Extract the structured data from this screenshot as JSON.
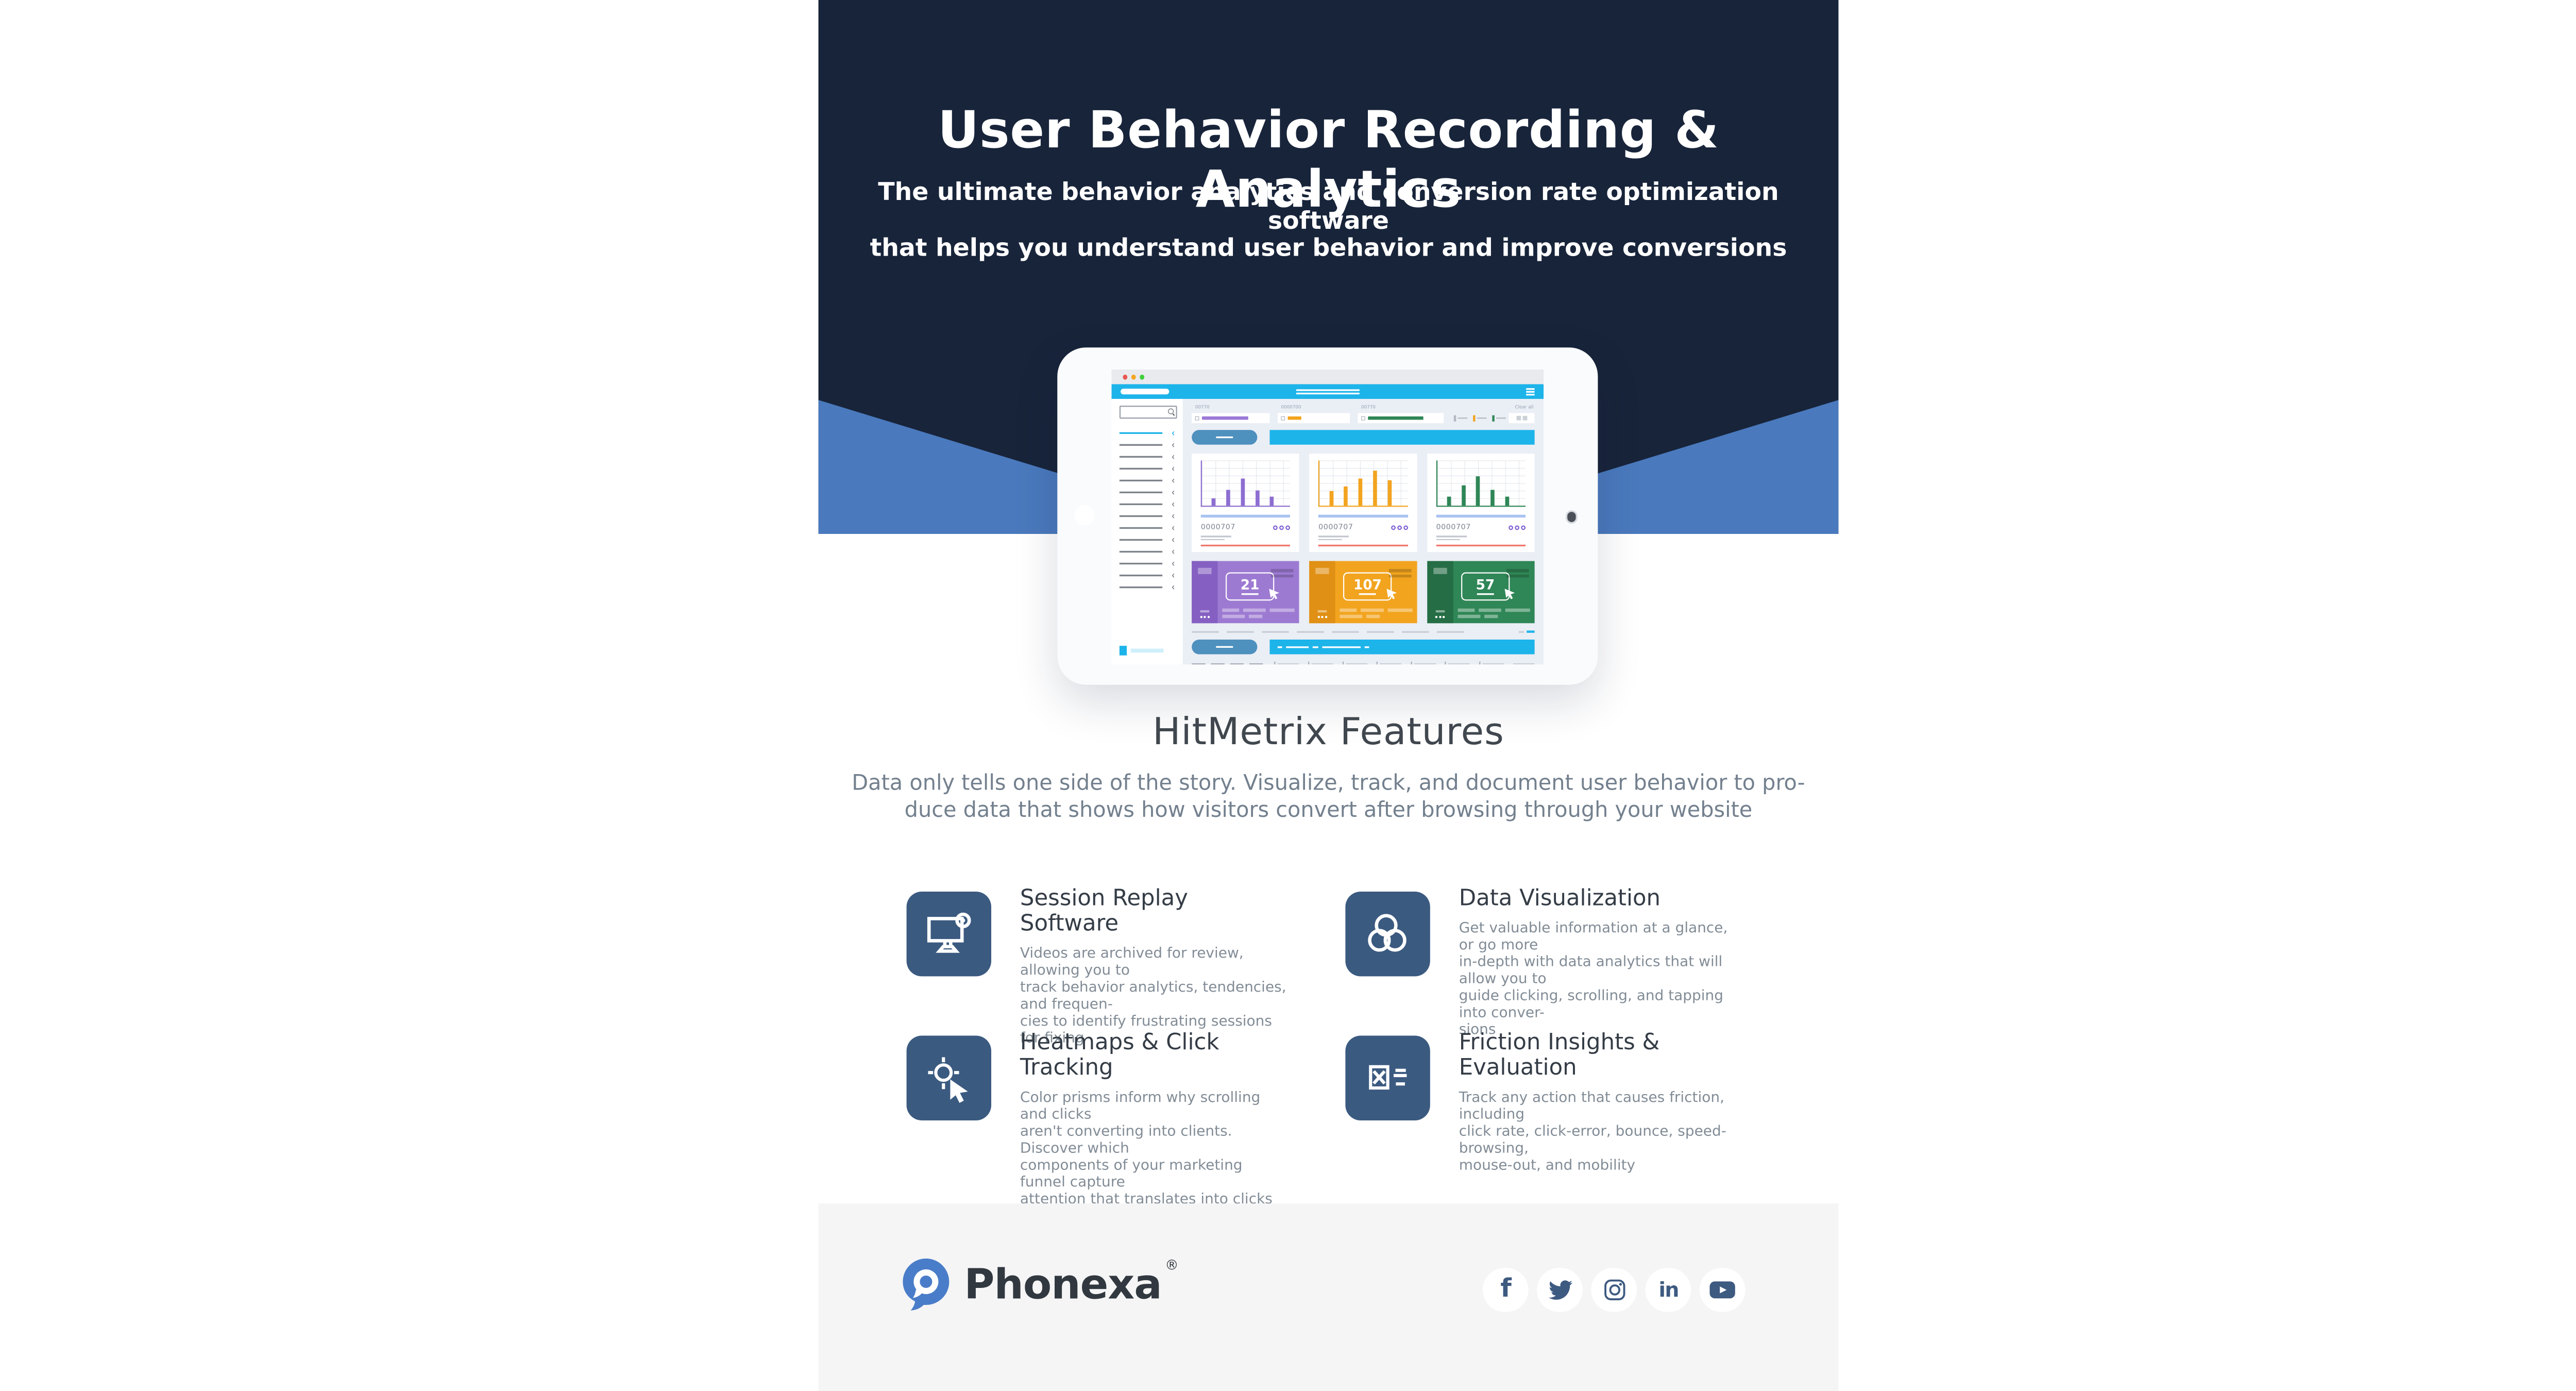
{
  "hero": {
    "title": "User Behavior Recording & Analytics",
    "subtitle_line1": "The ultimate behavior analytics and conversion rate optimization software",
    "subtitle_line2": "that helps you understand user behavior and improve conversions",
    "colors": {
      "navy": "#18243a",
      "blue": "#4a79bd"
    }
  },
  "dashboard": {
    "filter_labels": [
      "00770",
      "0000700",
      "00770"
    ],
    "clear_all_label": "Clear all",
    "chart_meta_id": "0000707",
    "stat_values": [
      "21",
      "107",
      "57"
    ],
    "colors": {
      "cyan": "#1db4ea",
      "steel_button": "#4e90be",
      "purple": "#9d7ad2",
      "orange": "#f2a41f",
      "green": "#2f8656",
      "salmon": "#f0776b",
      "periwinkle": "#a9c3f2"
    }
  },
  "chart_data": [
    {
      "type": "bar",
      "title": "",
      "xlabel": "",
      "ylabel": "",
      "x": [
        1,
        2,
        3,
        4,
        5
      ],
      "values_pct": [
        16,
        35,
        60,
        34,
        20
      ],
      "ylim": [
        0,
        100
      ],
      "grid": true,
      "color": "#8d6ed1",
      "legend": "none",
      "note": "decorative purple mini bar chart on tablet dashboard"
    },
    {
      "type": "bar",
      "title": "",
      "xlabel": "",
      "ylabel": "",
      "x": [
        1,
        2,
        3,
        4,
        5
      ],
      "values_pct": [
        32,
        42,
        60,
        78,
        56
      ],
      "ylim": [
        0,
        100
      ],
      "grid": true,
      "color": "#f2a41f",
      "legend": "none",
      "note": "decorative orange mini bar chart on tablet dashboard"
    },
    {
      "type": "bar",
      "title": "",
      "xlabel": "",
      "ylabel": "",
      "x": [
        1,
        2,
        3,
        4,
        5
      ],
      "values_pct": [
        20,
        45,
        65,
        35,
        20
      ],
      "ylim": [
        0,
        100
      ],
      "grid": true,
      "color": "#2f8656",
      "legend": "none",
      "note": "decorative green mini bar chart on tablet dashboard"
    }
  ],
  "features": {
    "heading": "HitMetrix Features",
    "description_line1": "Data only tells one side of the story. Visualize, track, and document user behavior to pro-",
    "description_line2": "duce data that shows how visitors convert after browsing through your website",
    "cards": [
      {
        "icon": "session-replay-monitor-icon",
        "title": "Session Replay Software",
        "body_lines": [
          "Videos are archived for review, allowing you to",
          "track behavior analytics, tendencies, and frequen-",
          "cies to identify frustrating sessions for fixing"
        ]
      },
      {
        "icon": "data-visualization-circles-icon",
        "title": "Data Visualization",
        "body_lines": [
          "Get valuable information at a glance, or go more",
          "in-depth with data analytics that will allow you to",
          "guide clicking, scrolling, and tapping into conver-",
          "sions"
        ]
      },
      {
        "icon": "heatmap-crosshair-cursor-icon",
        "title": "Heatmaps & Click Tracking",
        "body_lines": [
          "Color prisms inform why scrolling and clicks",
          "aren't converting into clients. Discover which",
          "components of your marketing funnel capture",
          "attention that translates into clicks"
        ]
      },
      {
        "icon": "friction-report-icon",
        "title": "Friction Insights & Evaluation",
        "body_lines": [
          "Track any action that causes friction, including",
          "click rate, click-error, bounce, speed-browsing,",
          "mouse-out, and mobility"
        ]
      }
    ],
    "icon_bg": "#3b5a80"
  },
  "footer": {
    "brand": "Phonexa",
    "registered": "®",
    "brand_blue": "#4a7dc9",
    "social": [
      "facebook",
      "twitter",
      "instagram",
      "linkedin",
      "youtube"
    ],
    "social_icon_color": "#3d5a80"
  }
}
